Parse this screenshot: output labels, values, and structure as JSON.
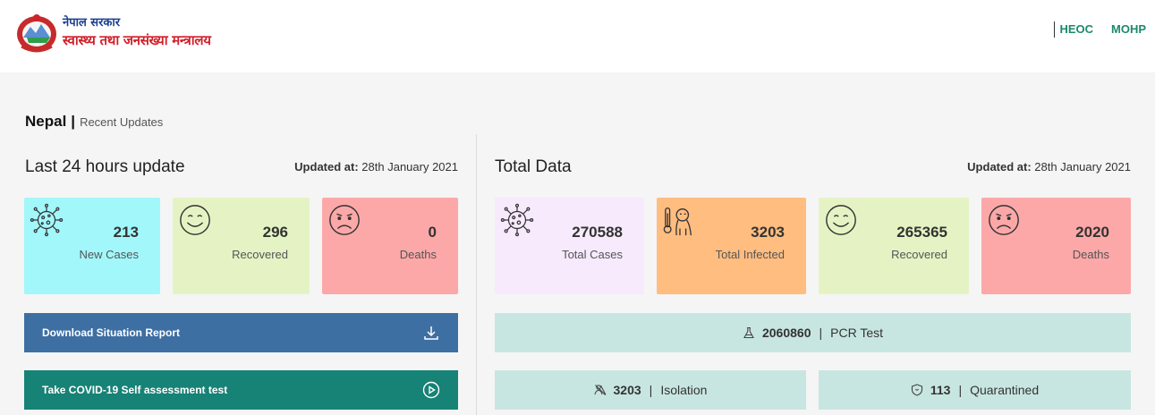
{
  "header": {
    "logo_line1": "नेपाल सरकार",
    "logo_line2": "स्वास्थ्य तथा जनसंख्या मन्त्रालय",
    "nav": [
      "HEOC",
      "MOHP"
    ]
  },
  "breadcrumb": {
    "main": "Nepal",
    "separator": "|",
    "sub": "Recent Updates"
  },
  "last24": {
    "title": "Last 24 hours update",
    "updated_label": "Updated at:",
    "updated_value": "28th January 2021",
    "cards": [
      {
        "icon": "virus-icon",
        "value": "213",
        "label": "New Cases",
        "color": "#a2f7fb"
      },
      {
        "icon": "smile-icon",
        "value": "296",
        "label": "Recovered",
        "color": "#e5f3c4"
      },
      {
        "icon": "sad-icon",
        "value": "0",
        "label": "Deaths",
        "color": "#fca8a8"
      }
    ],
    "download_label": "Download Situation Report",
    "assessment_label": "Take COVID-19 Self assessment test"
  },
  "total": {
    "title": "Total Data",
    "updated_label": "Updated at:",
    "updated_value": "28th January 2021",
    "cards": [
      {
        "icon": "virus-icon",
        "value": "270588",
        "label": "Total Cases",
        "color": "#f6eafc"
      },
      {
        "icon": "thermometer-patient-icon",
        "value": "3203",
        "label": "Total Infected",
        "color": "#ffbd80"
      },
      {
        "icon": "smile-icon",
        "value": "265365",
        "label": "Recovered",
        "color": "#e5f3c4"
      },
      {
        "icon": "sad-icon",
        "value": "2020",
        "label": "Deaths",
        "color": "#fca8a8"
      }
    ],
    "pcr": {
      "value": "2060860",
      "label": "PCR Test"
    },
    "isolation": {
      "value": "3203",
      "label": "Isolation"
    },
    "quarantined": {
      "value": "113",
      "label": "Quarantined"
    }
  },
  "colors": {
    "download_btn": "#3e6fa3",
    "assessment_btn": "#178276",
    "nav": "#1b8a6b",
    "stat_bar": "#c8e6e1"
  }
}
